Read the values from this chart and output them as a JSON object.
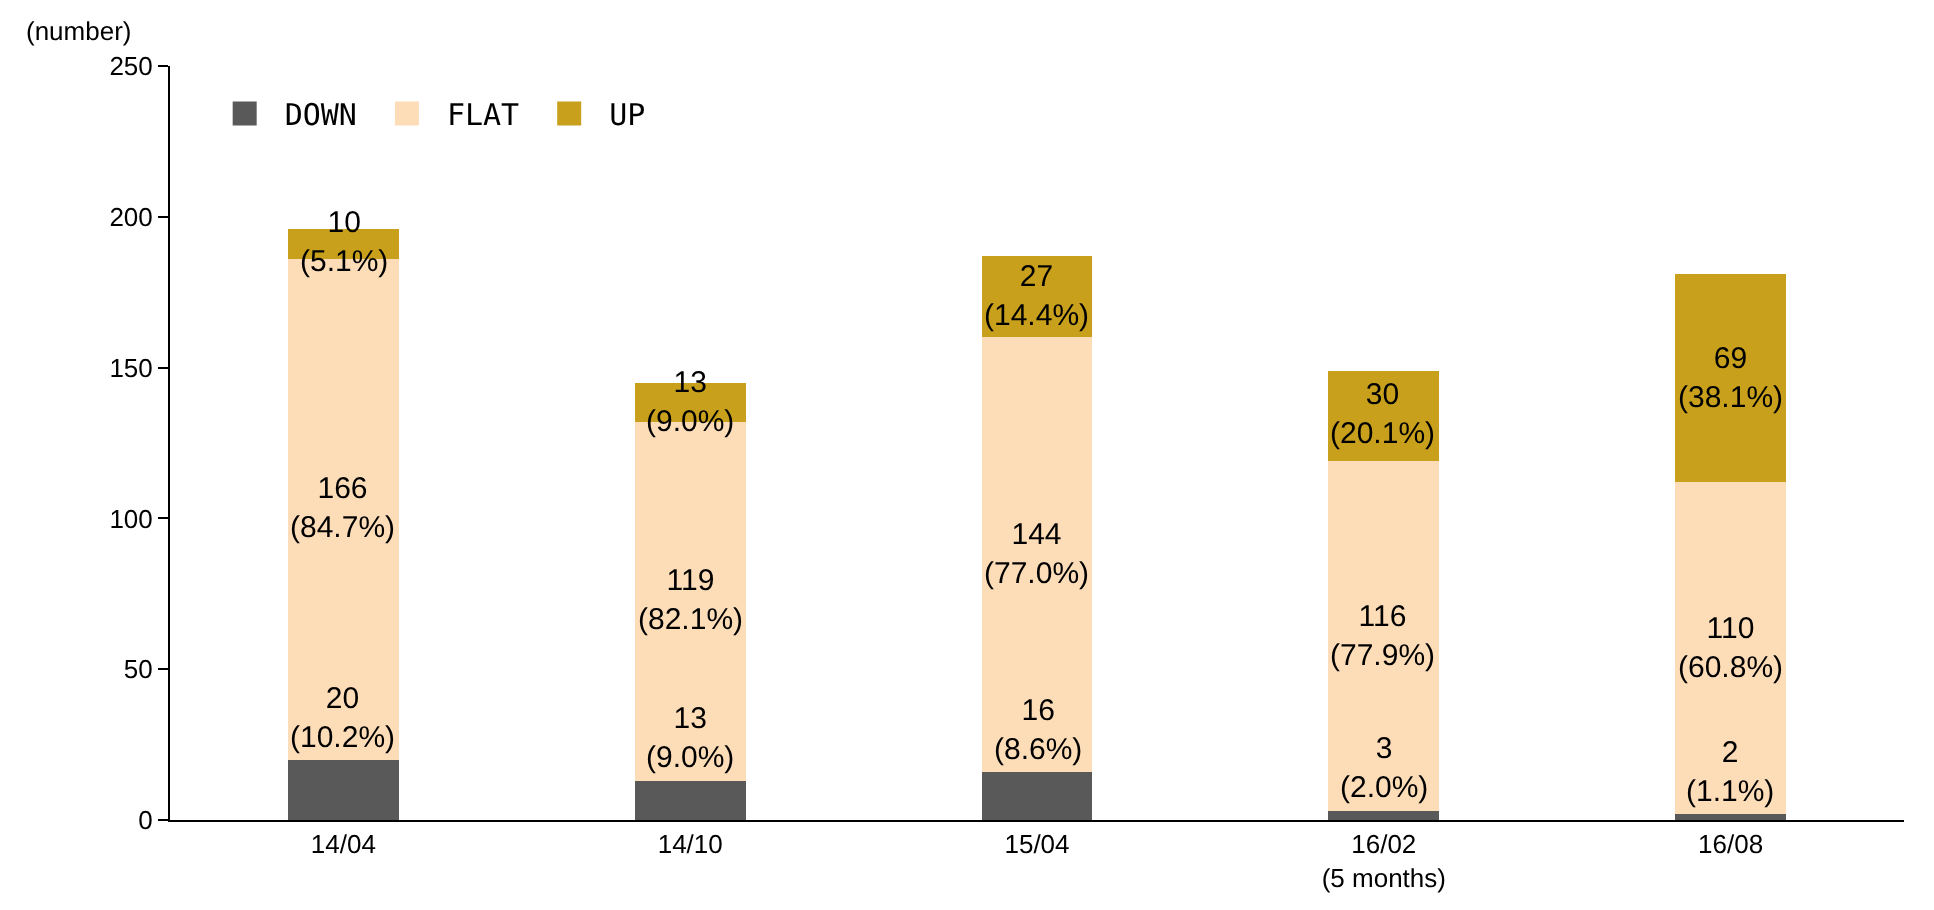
{
  "chart_data": {
    "type": "bar",
    "stacked": true,
    "ylabel": "(number)",
    "categories": [
      "14/04",
      "14/10",
      "15/04",
      "16/02\n(5 months)",
      "16/08"
    ],
    "series": [
      {
        "name": "DOWN",
        "color": "#595959",
        "values": [
          20,
          13,
          16,
          3,
          2
        ],
        "value_labels": [
          "20\n(10.2%)",
          "13\n(9.0%)",
          "16\n(8.6%)",
          "3\n(2.0%)",
          "2\n(1.1%)"
        ]
      },
      {
        "name": "FLAT",
        "color": "#fddcb8",
        "values": [
          166,
          119,
          144,
          116,
          110
        ],
        "value_labels": [
          "166\n(84.7%)",
          "119\n(82.1%)",
          "144\n(77.0%)",
          "116\n(77.9%)",
          "110\n(60.8%)"
        ]
      },
      {
        "name": "UP",
        "color": "#c8a01c",
        "values": [
          10,
          13,
          27,
          30,
          69
        ],
        "value_labels": [
          "10\n(5.1%)",
          "13\n(9.0%)",
          "27\n(14.4%)",
          "30\n(20.1%)",
          "69\n(38.1%)"
        ]
      }
    ],
    "ylim": [
      0,
      250
    ],
    "yticks": [
      0,
      50,
      100,
      150,
      200,
      250
    ],
    "grid": false,
    "legend": "top left"
  }
}
